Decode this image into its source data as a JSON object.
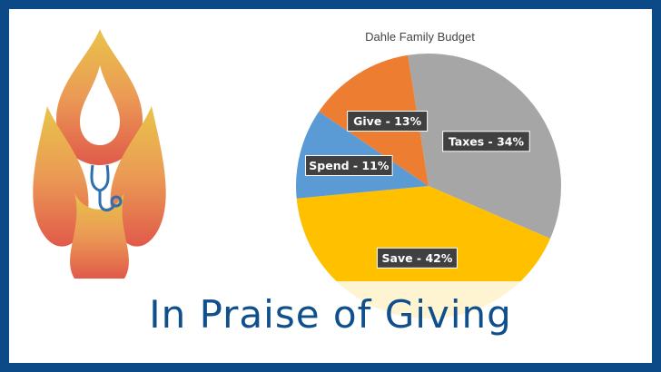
{
  "headline": "In Praise of Giving",
  "logo": {
    "icon": "flame-stethoscope-logo"
  },
  "colors": {
    "frame": "#0b4a86",
    "headline": "#0f4f8c",
    "taxes": "#a6a6a6",
    "save": "#ffc000",
    "spend": "#5b9bd5",
    "give": "#ed7d31",
    "label_bg": "#404040"
  },
  "chart_data": {
    "type": "pie",
    "title": "Dahle Family Budget",
    "slices": [
      {
        "name": "Taxes",
        "value": 34,
        "label": "Taxes - 34%",
        "color": "#a6a6a6"
      },
      {
        "name": "Save",
        "value": 42,
        "label": "Save - 42%",
        "color": "#ffc000"
      },
      {
        "name": "Spend",
        "value": 11,
        "label": "Spend - 11%",
        "color": "#5b9bd5"
      },
      {
        "name": "Give",
        "value": 13,
        "label": "Give - 13%",
        "color": "#ed7d31"
      }
    ]
  }
}
